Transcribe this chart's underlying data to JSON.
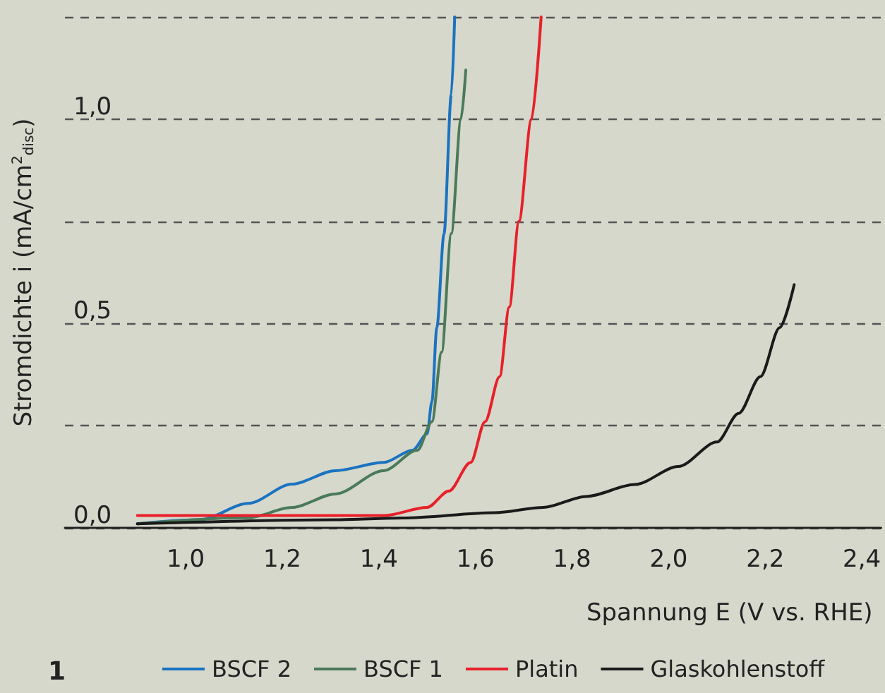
{
  "chart_data": {
    "type": "line",
    "xlabel": "Spannung E (V vs. RHE)",
    "ylabel": "Stromdichte i (mA/cm$^{2}$$_{disc}$)",
    "annotations": [
      "1"
    ],
    "xlim": [
      0.75,
      2.44
    ],
    "xticks": [
      {
        "value": 1.0,
        "label": "1,0"
      },
      {
        "value": 1.2,
        "label": "1,2"
      },
      {
        "value": 1.4,
        "label": "1,4"
      },
      {
        "value": 1.6,
        "label": "1,6"
      },
      {
        "value": 1.8,
        "label": "1,8"
      },
      {
        "value": 2.0,
        "label": "2,0"
      },
      {
        "value": 2.2,
        "label": "2,2"
      },
      {
        "value": 2.4,
        "label": "2,4"
      }
    ],
    "ylim": [
      0,
      1.25
    ],
    "yticks": [
      {
        "value": 0,
        "label": "0,0"
      },
      {
        "value": 0.25,
        "label": null
      },
      {
        "value": 0.5,
        "label": "0,5"
      },
      {
        "value": 0.75,
        "label": null
      },
      {
        "value": 1.0,
        "label": "1,0"
      },
      {
        "value": 1.25,
        "label": null
      }
    ],
    "grid": "y",
    "legend": "bottom",
    "marker": "none",
    "line_style": "solid",
    "series": [
      {
        "name": "BSCF 2",
        "color": "#1a73c0",
        "x": [
          0.9,
          1.03,
          1.13,
          1.22,
          1.31,
          1.41,
          1.47,
          1.5,
          1.51,
          1.52,
          1.535,
          1.55,
          1.557
        ],
        "values": [
          0.01,
          0.02,
          0.06,
          0.107,
          0.14,
          0.16,
          0.19,
          0.23,
          0.31,
          0.49,
          0.72,
          1.06,
          1.25
        ]
      },
      {
        "name": "BSCF 1",
        "color": "#4a7a5a",
        "x": [
          0.9,
          1.13,
          1.22,
          1.31,
          1.41,
          1.48,
          1.51,
          1.53,
          1.55,
          1.57,
          1.58
        ],
        "values": [
          0.01,
          0.025,
          0.05,
          0.083,
          0.14,
          0.19,
          0.26,
          0.43,
          0.72,
          1.0,
          1.12
        ]
      },
      {
        "name": "Platin",
        "color": "#e8202a",
        "x": [
          0.9,
          1.41,
          1.5,
          1.545,
          1.59,
          1.62,
          1.65,
          1.67,
          1.69,
          1.716,
          1.736
        ],
        "values": [
          0.03,
          0.03,
          0.05,
          0.09,
          0.16,
          0.26,
          0.37,
          0.54,
          0.75,
          1.0,
          1.25
        ]
      },
      {
        "name": "Glaskohlenstoff",
        "color": "#1a1a1a",
        "x": [
          0.9,
          1.31,
          1.45,
          1.64,
          1.74,
          1.83,
          1.93,
          2.02,
          2.1,
          2.145,
          2.19,
          2.23,
          2.26
        ],
        "values": [
          0.01,
          0.02,
          0.024,
          0.037,
          0.05,
          0.077,
          0.106,
          0.15,
          0.21,
          0.28,
          0.37,
          0.49,
          0.595
        ]
      }
    ]
  }
}
